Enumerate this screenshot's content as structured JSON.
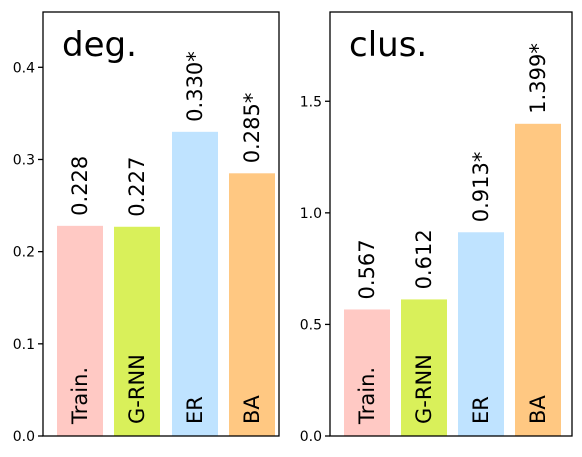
{
  "chart_data": [
    {
      "type": "bar",
      "title": "deg.",
      "categories": [
        "Train.",
        "G-RNN",
        "ER",
        "BA"
      ],
      "values": [
        0.228,
        0.227,
        0.33,
        0.285
      ],
      "value_labels": [
        "0.228",
        "0.227",
        "0.330*",
        "0.285*"
      ],
      "colors": [
        "#ffc9c4",
        "#d9f05a",
        "#bfe3ff",
        "#ffc882"
      ],
      "ylim": [
        0,
        0.46
      ],
      "yticks": [
        0.0,
        0.1,
        0.2,
        0.3,
        0.4
      ],
      "ytick_labels": [
        "0.0",
        "0.1",
        "0.2",
        "0.3",
        "0.4"
      ],
      "xlabel": "",
      "ylabel": "",
      "grid": false,
      "legend": "none"
    },
    {
      "type": "bar",
      "title": "clus.",
      "categories": [
        "Train.",
        "G-RNN",
        "ER",
        "BA"
      ],
      "values": [
        0.567,
        0.612,
        0.913,
        1.399
      ],
      "value_labels": [
        "0.567",
        "0.612",
        "0.913*",
        "1.399*"
      ],
      "colors": [
        "#ffc9c4",
        "#d9f05a",
        "#bfe3ff",
        "#ffc882"
      ],
      "ylim": [
        0,
        1.9
      ],
      "yticks": [
        0.0,
        0.5,
        1.0,
        1.5
      ],
      "ytick_labels": [
        "0.0",
        "0.5",
        "1.0",
        "1.5"
      ],
      "xlabel": "",
      "ylabel": "",
      "grid": false,
      "legend": "none"
    }
  ]
}
